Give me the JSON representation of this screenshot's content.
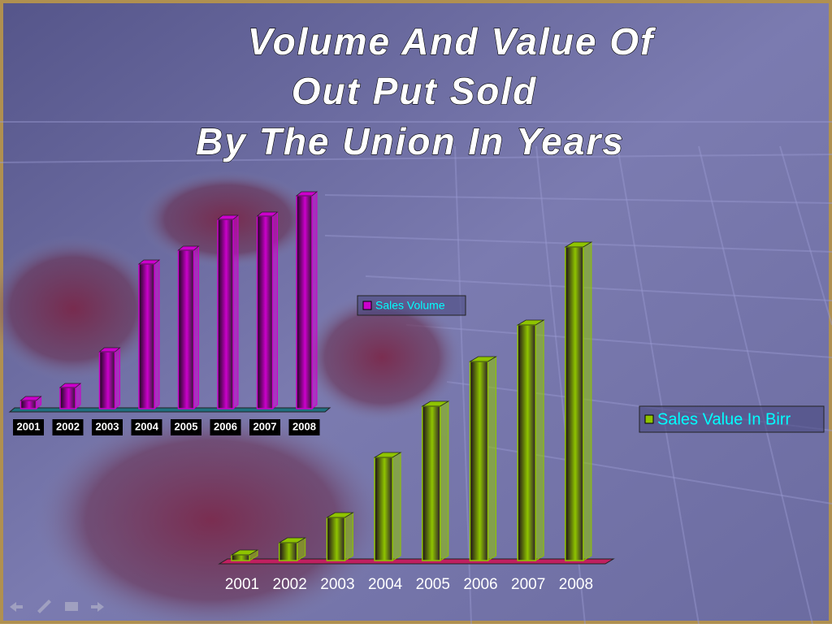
{
  "slide": {
    "title_lines": [
      "Volume And Value Of",
      "Out Put Sold",
      "By The Union In Years"
    ]
  },
  "chart_data": [
    {
      "type": "bar3d",
      "categories": [
        "2001",
        "2002",
        "2003",
        "2004",
        "2005",
        "2006",
        "2007",
        "2008"
      ],
      "series": [
        {
          "name": "Sales Volume",
          "color": "#cc00cc",
          "values": [
            10,
            26,
            70,
            178,
            195,
            233,
            237,
            262
          ]
        }
      ],
      "ylim": [
        0,
        270
      ]
    },
    {
      "type": "bar3d",
      "categories": [
        "2001",
        "2002",
        "2003",
        "2004",
        "2005",
        "2006",
        "2007",
        "2008"
      ],
      "series": [
        {
          "name": "Sales Value In Birr",
          "color": "#8fc400",
          "values": [
            7,
            22,
            53,
            127,
            190,
            245,
            290,
            386
          ]
        }
      ],
      "ylim": [
        0,
        400
      ]
    }
  ]
}
